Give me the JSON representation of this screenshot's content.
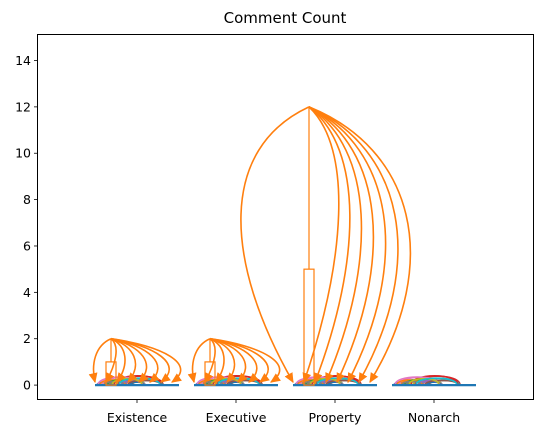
{
  "chart_data": {
    "type": "bar",
    "title": "Comment Count",
    "xlabel": "",
    "ylabel": "",
    "categories": [
      "Existence",
      "Executive",
      "Property",
      "Nonarch"
    ],
    "values": [
      1,
      1,
      5,
      0
    ],
    "max_values": [
      2,
      2,
      12,
      0
    ],
    "ylim": [
      -0.6,
      15.1
    ],
    "yticks": [
      0,
      2,
      4,
      6,
      8,
      10,
      12,
      14
    ],
    "grid": false,
    "legend": "none",
    "colors": {
      "bar": "#ff7f0e",
      "arc": "#ff7f0e",
      "arc_palette": [
        "#1f77b4",
        "#ff7f0e",
        "#2ca02c",
        "#d62728",
        "#9467bd",
        "#8c564b",
        "#e377c2",
        "#7f7f7f",
        "#bcbd22",
        "#17becf"
      ]
    }
  }
}
